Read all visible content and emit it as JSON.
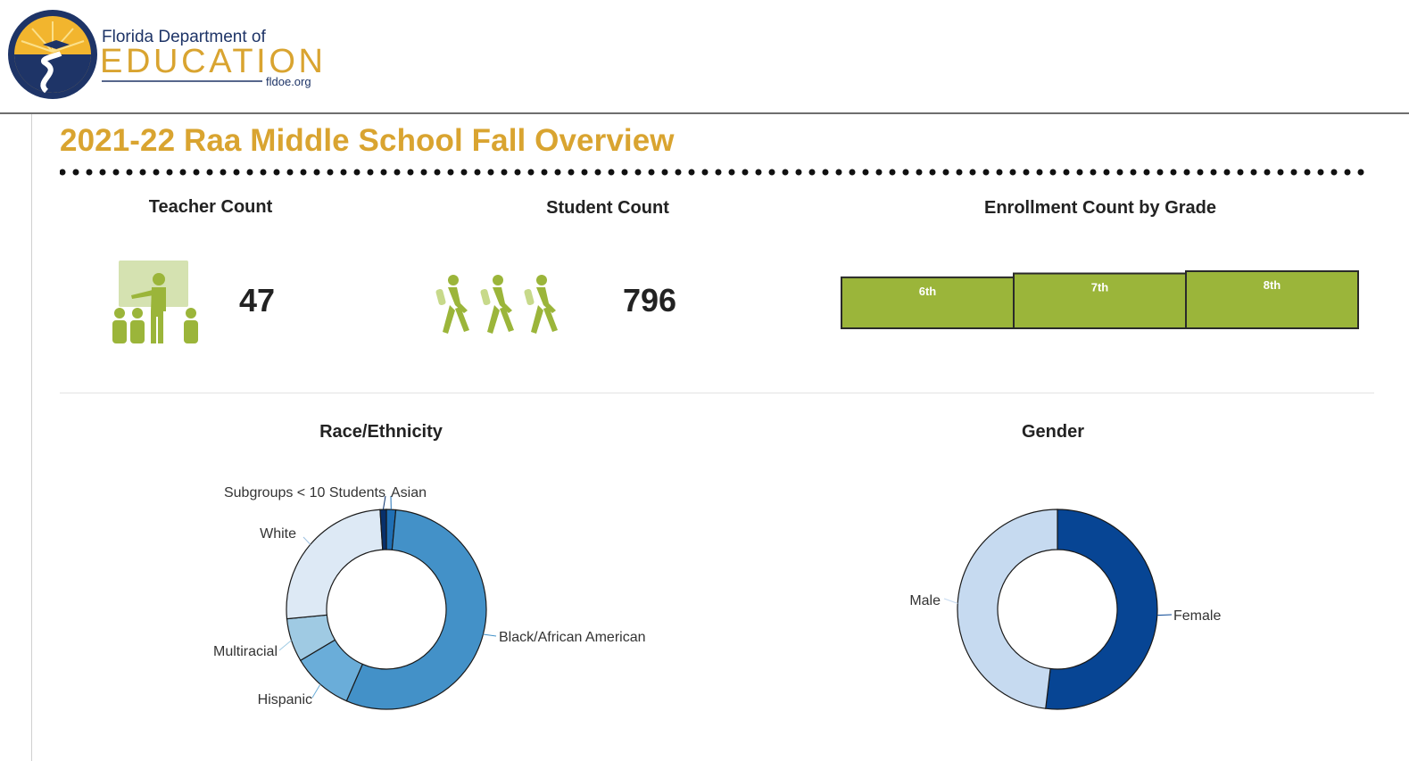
{
  "header": {
    "logo": {
      "line1": "Florida Department of",
      "line2": "EDUCATION",
      "line3": "fldoe.org"
    }
  },
  "page": {
    "title": "2021-22 Raa Middle School Fall Overview",
    "accent_color": "#d9a430",
    "icon_color": "#9bb53a"
  },
  "teacher_panel": {
    "title": "Teacher Count",
    "value": "47",
    "icon": "teacher-classroom-icon"
  },
  "student_panel": {
    "title": "Student Count",
    "value": "796",
    "icon": "walking-students-icon"
  },
  "enrollment_panel": {
    "title": "Enrollment Count by Grade"
  },
  "race_panel": {
    "title": "Race/Ethnicity"
  },
  "gender_panel": {
    "title": "Gender"
  },
  "chart_data": [
    {
      "type": "bar",
      "title": "Enrollment Count by Grade",
      "categories": [
        "6th",
        "7th",
        "8th"
      ],
      "values": [
        249,
        268,
        279
      ],
      "color": "#9bb53a"
    },
    {
      "type": "pie",
      "title": "Race/Ethnicity",
      "labels": [
        "Asian",
        "Black/African American",
        "Hispanic",
        "Multiracial",
        "White",
        "Subgroups < 10 Students"
      ],
      "values": [
        12,
        438,
        79,
        56,
        203,
        8
      ],
      "colors": [
        "#1f6fb4",
        "#4391c8",
        "#6aadd9",
        "#9fcae3",
        "#dde9f5",
        "#08306b"
      ]
    },
    {
      "type": "pie",
      "title": "Gender",
      "labels": [
        "Female",
        "Male"
      ],
      "values": [
        413,
        383
      ],
      "colors": [
        "#074594",
        "#c6daf0"
      ]
    }
  ]
}
